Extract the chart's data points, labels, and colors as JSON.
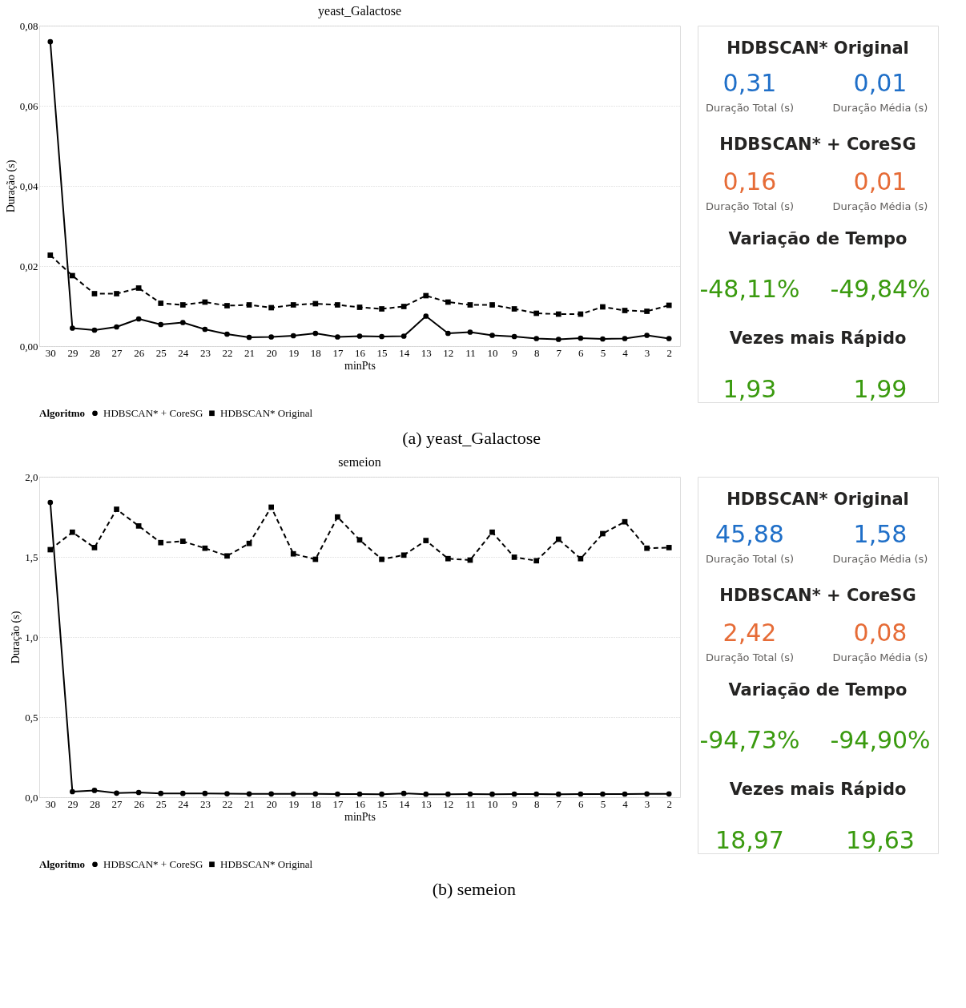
{
  "chart_data": [
    {
      "type": "line",
      "title": "yeast_Galactose",
      "xlabel": "minPts",
      "ylabel": "Duração (s)",
      "legend_title": "Algoritmo",
      "legend": "bottom",
      "grid": "y",
      "annotations": [
        "(a)  yeast_Galactose"
      ],
      "categories": [
        "30",
        "29",
        "28",
        "27",
        "26",
        "25",
        "24",
        "23",
        "22",
        "21",
        "20",
        "19",
        "18",
        "17",
        "16",
        "15",
        "14",
        "13",
        "12",
        "11",
        "10",
        "9",
        "8",
        "7",
        "6",
        "5",
        "4",
        "3",
        "2"
      ],
      "ylim": [
        0,
        0.08
      ],
      "yticks": [
        {
          "value": 0,
          "label": "0,00"
        },
        {
          "value": 0.02,
          "label": "0,02"
        },
        {
          "value": 0.04,
          "label": "0,04"
        },
        {
          "value": 0.06,
          "label": "0,06"
        },
        {
          "value": 0.08,
          "label": "0,08"
        }
      ],
      "series": [
        {
          "name": "HDBSCAN* + CoreSG",
          "color": "#000000",
          "marker": "circle",
          "line_style": "solid",
          "values": [
            0.076,
            0.0045,
            0.004,
            0.0048,
            0.0068,
            0.0054,
            0.0059,
            0.0042,
            0.003,
            0.0022,
            0.0023,
            0.0026,
            0.0032,
            0.0023,
            0.0025,
            0.0024,
            0.0025,
            0.0075,
            0.0032,
            0.0035,
            0.0027,
            0.0024,
            0.0019,
            0.0017,
            0.002,
            0.0018,
            0.0019,
            0.0027,
            0.0019
          ]
        },
        {
          "name": "HDBSCAN* Original",
          "color": "#000000",
          "marker": "square",
          "line_style": "dashed",
          "values": [
            0.0227,
            0.0176,
            0.0131,
            0.0131,
            0.0145,
            0.0107,
            0.0103,
            0.011,
            0.0101,
            0.0103,
            0.0096,
            0.0103,
            0.0106,
            0.0103,
            0.0097,
            0.0093,
            0.0099,
            0.0126,
            0.011,
            0.0103,
            0.0103,
            0.0093,
            0.0082,
            0.008,
            0.008,
            0.0098,
            0.0089,
            0.0087,
            0.0102
          ]
        }
      ]
    },
    {
      "type": "other",
      "annotations": [
        "HDBSCAN* Original",
        "0,31",
        "0,01",
        "Duração Total (s)",
        "Duração Média (s)",
        "HDBSCAN* + CoreSG",
        "0,16",
        "0,01",
        "Duração Total (s)",
        "Duração Média (s)",
        "Variação de Tempo",
        "-48,11%",
        "-49,84%",
        "Vezes mais Rápido",
        "1,93",
        "1,99"
      ],
      "colors": [
        "#252423",
        "#1f6fc8",
        "#1f6fc8",
        "#605e5c",
        "#605e5c",
        "#252423",
        "#e66c37",
        "#e66c37",
        "#605e5c",
        "#605e5c",
        "#252423",
        "#3a9a0f",
        "#3a9a0f",
        "#252423",
        "#3a9a0f",
        "#3a9a0f"
      ]
    },
    {
      "type": "line",
      "title": "semeion",
      "xlabel": "minPts",
      "ylabel": "Duração (s)",
      "legend_title": "Algoritmo",
      "legend": "bottom",
      "grid": "y",
      "annotations": [
        "(b)  semeion"
      ],
      "categories": [
        "30",
        "29",
        "28",
        "27",
        "26",
        "25",
        "24",
        "23",
        "22",
        "21",
        "20",
        "19",
        "18",
        "17",
        "16",
        "15",
        "14",
        "13",
        "12",
        "11",
        "10",
        "9",
        "8",
        "7",
        "6",
        "5",
        "4",
        "3",
        "2"
      ],
      "ylim": [
        0,
        2.0
      ],
      "yticks": [
        {
          "value": 0,
          "label": "0,0"
        },
        {
          "value": 0.5,
          "label": "0,5"
        },
        {
          "value": 1.0,
          "label": "1,0"
        },
        {
          "value": 1.5,
          "label": "1,5"
        },
        {
          "value": 2.0,
          "label": "2,0"
        }
      ],
      "series": [
        {
          "name": "HDBSCAN* + CoreSG",
          "color": "#000000",
          "marker": "circle",
          "line_style": "solid",
          "values": [
            1.84,
            0.035,
            0.043,
            0.026,
            0.03,
            0.024,
            0.024,
            0.024,
            0.022,
            0.021,
            0.021,
            0.021,
            0.021,
            0.02,
            0.02,
            0.019,
            0.024,
            0.019,
            0.019,
            0.02,
            0.019,
            0.02,
            0.02,
            0.019,
            0.02,
            0.02,
            0.02,
            0.021,
            0.021
          ]
        },
        {
          "name": "HDBSCAN* Original",
          "color": "#000000",
          "marker": "square",
          "line_style": "dashed",
          "values": [
            1.545,
            1.654,
            1.558,
            1.797,
            1.693,
            1.589,
            1.597,
            1.554,
            1.506,
            1.584,
            1.81,
            1.519,
            1.485,
            1.749,
            1.606,
            1.485,
            1.511,
            1.602,
            1.489,
            1.48,
            1.654,
            1.498,
            1.476,
            1.61,
            1.489,
            1.645,
            1.719,
            1.554,
            1.558
          ]
        }
      ]
    },
    {
      "type": "other",
      "annotations": [
        "HDBSCAN* Original",
        "45,88",
        "1,58",
        "Duração Total (s)",
        "Duração Média (s)",
        "HDBSCAN* + CoreSG",
        "2,42",
        "0,08",
        "Duração Total (s)",
        "Duração Média (s)",
        "Variação de Tempo",
        "-94,73%",
        "-94,90%",
        "Vezes mais Rápido",
        "18,97",
        "19,63"
      ],
      "colors": [
        "#252423",
        "#1f6fc8",
        "#1f6fc8",
        "#605e5c",
        "#605e5c",
        "#252423",
        "#e66c37",
        "#e66c37",
        "#605e5c",
        "#605e5c",
        "#252423",
        "#3a9a0f",
        "#3a9a0f",
        "#252423",
        "#3a9a0f",
        "#3a9a0f"
      ]
    }
  ]
}
